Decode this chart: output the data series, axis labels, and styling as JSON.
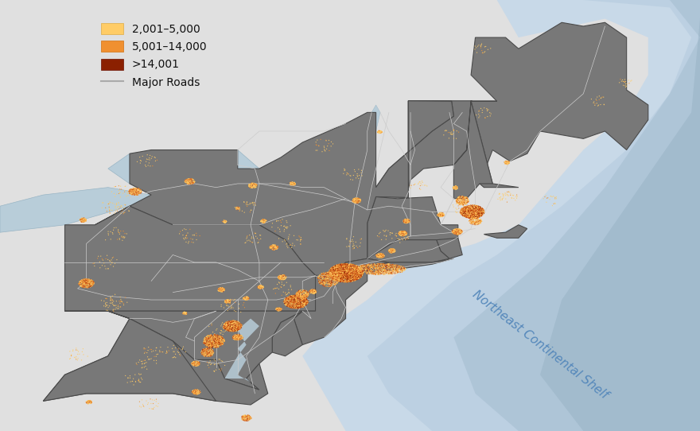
{
  "figsize": [
    8.8,
    5.42
  ],
  "dpi": 100,
  "xlim": [
    -82.0,
    -65.8
  ],
  "ylim": [
    36.5,
    48.0
  ],
  "bg_gray": "#E0E0E0",
  "state_fill": "#787878",
  "state_edge": "#4A4A4A",
  "state_edge_lw": 0.8,
  "road_color": "#CCCCCC",
  "road_lw": 0.5,
  "ocean_near": "#C8D9E8",
  "ocean_mid": "#B5CBDE",
  "ocean_far": "#A2BBCE",
  "ocean_deep": "#90ACBF",
  "lake_color": "#B8CDD9",
  "shelf_label": "Northeast Continental Shelf",
  "shelf_color": "#5588BB",
  "shelf_fontsize": 11,
  "legend_fontsize": 10,
  "pop_color_low": "#FFCC66",
  "pop_color_med": "#F09030",
  "pop_color_high": "#C04010",
  "pop_color_vhigh": "#8B2000"
}
